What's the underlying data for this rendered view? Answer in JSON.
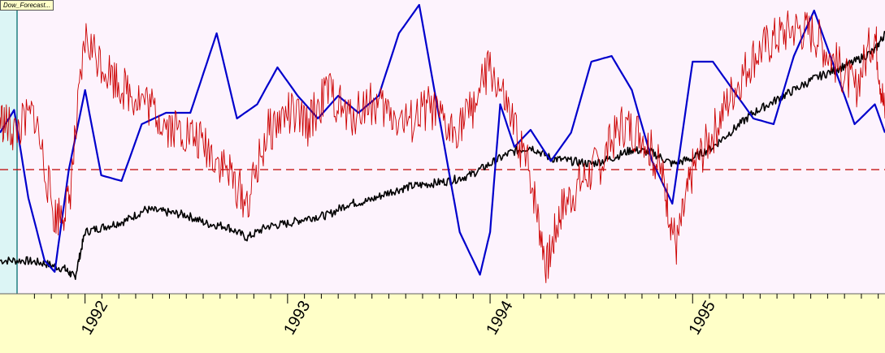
{
  "chart_data": {
    "type": "line",
    "title": "Dow_Forecast...",
    "x_tick_labels": [
      "1992",
      "1993",
      "1994",
      "1995"
    ],
    "xlim": [
      "1991.58",
      "1995.95"
    ],
    "reference_line": {
      "label": "",
      "style": "dashed",
      "color": "#c00000"
    },
    "series": [
      {
        "color": "#000000",
        "values": [
          [
            1991.58,
            0.1
          ],
          [
            1991.7,
            0.1
          ],
          [
            1991.8,
            0.09
          ],
          [
            1991.9,
            0.07
          ],
          [
            1991.95,
            0.04
          ],
          [
            1992.0,
            0.2
          ],
          [
            1992.1,
            0.22
          ],
          [
            1992.2,
            0.24
          ],
          [
            1992.3,
            0.28
          ],
          [
            1992.4,
            0.27
          ],
          [
            1992.5,
            0.26
          ],
          [
            1992.6,
            0.23
          ],
          [
            1992.7,
            0.22
          ],
          [
            1992.8,
            0.18
          ],
          [
            1992.9,
            0.22
          ],
          [
            1993.0,
            0.23
          ],
          [
            1993.1,
            0.25
          ],
          [
            1993.2,
            0.26
          ],
          [
            1993.3,
            0.3
          ],
          [
            1993.4,
            0.31
          ],
          [
            1993.5,
            0.34
          ],
          [
            1993.6,
            0.36
          ],
          [
            1993.7,
            0.37
          ],
          [
            1993.8,
            0.38
          ],
          [
            1993.9,
            0.4
          ],
          [
            1994.0,
            0.44
          ],
          [
            1994.1,
            0.48
          ],
          [
            1994.2,
            0.5
          ],
          [
            1994.3,
            0.46
          ],
          [
            1994.4,
            0.45
          ],
          [
            1994.5,
            0.44
          ],
          [
            1994.6,
            0.46
          ],
          [
            1994.7,
            0.49
          ],
          [
            1994.8,
            0.48
          ],
          [
            1994.9,
            0.44
          ],
          [
            1995.0,
            0.46
          ],
          [
            1995.1,
            0.5
          ],
          [
            1995.2,
            0.56
          ],
          [
            1995.3,
            0.62
          ],
          [
            1995.4,
            0.66
          ],
          [
            1995.5,
            0.7
          ],
          [
            1995.6,
            0.74
          ],
          [
            1995.7,
            0.77
          ],
          [
            1995.8,
            0.8
          ],
          [
            1995.9,
            0.84
          ],
          [
            1995.95,
            0.9
          ]
        ]
      },
      {
        "color": "#0000cc",
        "values": [
          [
            1991.58,
            0.55
          ],
          [
            1991.65,
            0.63
          ],
          [
            1991.72,
            0.32
          ],
          [
            1991.8,
            0.1
          ],
          [
            1991.85,
            0.06
          ],
          [
            1991.92,
            0.42
          ],
          [
            1992.0,
            0.7
          ],
          [
            1992.08,
            0.4
          ],
          [
            1992.18,
            0.38
          ],
          [
            1992.28,
            0.58
          ],
          [
            1992.4,
            0.62
          ],
          [
            1992.52,
            0.62
          ],
          [
            1992.65,
            0.9
          ],
          [
            1992.75,
            0.6
          ],
          [
            1992.85,
            0.65
          ],
          [
            1992.95,
            0.78
          ],
          [
            1993.05,
            0.68
          ],
          [
            1993.15,
            0.6
          ],
          [
            1993.25,
            0.68
          ],
          [
            1993.35,
            0.62
          ],
          [
            1993.45,
            0.68
          ],
          [
            1993.55,
            0.9
          ],
          [
            1993.65,
            1.0
          ],
          [
            1993.75,
            0.6
          ],
          [
            1993.85,
            0.2
          ],
          [
            1993.95,
            0.05
          ],
          [
            1994.0,
            0.2
          ],
          [
            1994.05,
            0.65
          ],
          [
            1994.12,
            0.5
          ],
          [
            1994.2,
            0.56
          ],
          [
            1994.3,
            0.45
          ],
          [
            1994.4,
            0.55
          ],
          [
            1994.5,
            0.8
          ],
          [
            1994.6,
            0.82
          ],
          [
            1994.7,
            0.7
          ],
          [
            1994.8,
            0.45
          ],
          [
            1994.9,
            0.3
          ],
          [
            1995.0,
            0.8
          ],
          [
            1995.1,
            0.8
          ],
          [
            1995.2,
            0.7
          ],
          [
            1995.3,
            0.6
          ],
          [
            1995.4,
            0.58
          ],
          [
            1995.5,
            0.82
          ],
          [
            1995.6,
            0.98
          ],
          [
            1995.7,
            0.78
          ],
          [
            1995.8,
            0.58
          ],
          [
            1995.9,
            0.65
          ],
          [
            1995.95,
            0.55
          ]
        ]
      },
      {
        "color": "#cc0000",
        "values": [
          [
            1991.58,
            0.6
          ],
          [
            1991.65,
            0.55
          ],
          [
            1991.75,
            0.62
          ],
          [
            1991.85,
            0.25
          ],
          [
            1991.92,
            0.3
          ],
          [
            1992.0,
            0.88
          ],
          [
            1992.1,
            0.78
          ],
          [
            1992.2,
            0.7
          ],
          [
            1992.3,
            0.66
          ],
          [
            1992.4,
            0.58
          ],
          [
            1992.5,
            0.55
          ],
          [
            1992.6,
            0.5
          ],
          [
            1992.7,
            0.42
          ],
          [
            1992.8,
            0.3
          ],
          [
            1992.9,
            0.55
          ],
          [
            1993.0,
            0.62
          ],
          [
            1993.1,
            0.58
          ],
          [
            1993.2,
            0.7
          ],
          [
            1993.3,
            0.6
          ],
          [
            1993.4,
            0.66
          ],
          [
            1993.5,
            0.62
          ],
          [
            1993.6,
            0.58
          ],
          [
            1993.7,
            0.64
          ],
          [
            1993.8,
            0.55
          ],
          [
            1993.9,
            0.62
          ],
          [
            1994.0,
            0.78
          ],
          [
            1994.1,
            0.6
          ],
          [
            1994.2,
            0.4
          ],
          [
            1994.28,
            0.08
          ],
          [
            1994.35,
            0.28
          ],
          [
            1994.45,
            0.38
          ],
          [
            1994.55,
            0.45
          ],
          [
            1994.65,
            0.58
          ],
          [
            1994.75,
            0.55
          ],
          [
            1994.85,
            0.4
          ],
          [
            1994.92,
            0.15
          ],
          [
            1995.0,
            0.42
          ],
          [
            1995.1,
            0.55
          ],
          [
            1995.2,
            0.7
          ],
          [
            1995.3,
            0.82
          ],
          [
            1995.4,
            0.88
          ],
          [
            1995.5,
            0.92
          ],
          [
            1995.6,
            0.9
          ],
          [
            1995.7,
            0.8
          ],
          [
            1995.8,
            0.7
          ],
          [
            1995.9,
            0.9
          ],
          [
            1995.95,
            0.6
          ]
        ]
      }
    ],
    "reference_y": 0.42,
    "grid": false
  }
}
